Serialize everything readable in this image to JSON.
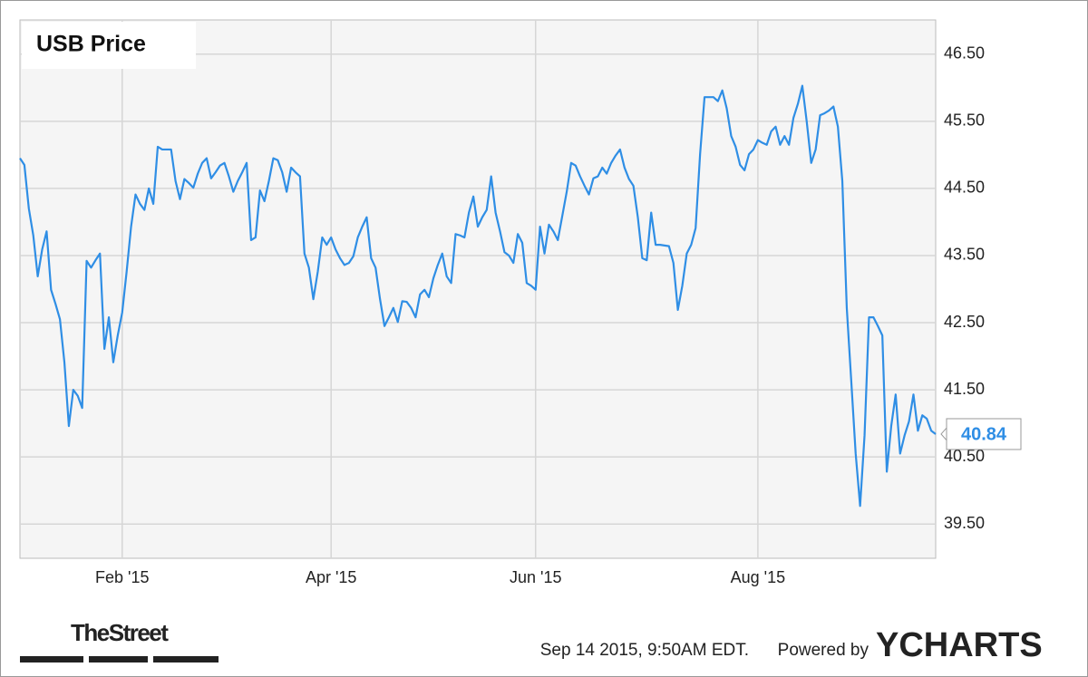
{
  "chart_data": {
    "type": "line",
    "title": "USB Price",
    "series": [
      {
        "name": "USB",
        "color": "#2f8ee5",
        "values": [
          44.95,
          44.85,
          44.2,
          43.8,
          43.19,
          43.59,
          43.86,
          42.99,
          42.78,
          42.55,
          41.91,
          40.96,
          41.5,
          41.41,
          41.23,
          43.42,
          43.32,
          43.43,
          43.53,
          42.11,
          42.58,
          41.91,
          42.31,
          42.65,
          43.26,
          43.93,
          44.41,
          44.27,
          44.18,
          44.5,
          44.27,
          45.12,
          45.08,
          45.08,
          45.08,
          44.61,
          44.34,
          44.64,
          44.58,
          44.51,
          44.72,
          44.88,
          44.95,
          44.65,
          44.74,
          44.84,
          44.88,
          44.68,
          44.45,
          44.61,
          44.74,
          44.88,
          43.73,
          43.77,
          44.47,
          44.31,
          44.61,
          44.95,
          44.92,
          44.74,
          44.45,
          44.81,
          44.74,
          44.68,
          43.53,
          43.32,
          42.85,
          43.26,
          43.77,
          43.66,
          43.77,
          43.59,
          43.46,
          43.36,
          43.39,
          43.49,
          43.77,
          43.93,
          44.07,
          43.46,
          43.32,
          42.85,
          42.45,
          42.58,
          42.72,
          42.51,
          42.82,
          42.81,
          42.72,
          42.58,
          42.92,
          42.99,
          42.88,
          43.16,
          43.36,
          43.53,
          43.19,
          43.09,
          43.82,
          43.8,
          43.77,
          44.14,
          44.38,
          43.93,
          44.07,
          44.18,
          44.68,
          44.14,
          43.86,
          43.55,
          43.5,
          43.39,
          43.82,
          43.69,
          43.09,
          43.05,
          42.99,
          43.93,
          43.53,
          43.96,
          43.86,
          43.73,
          44.09,
          44.45,
          44.88,
          44.84,
          44.68,
          44.54,
          44.41,
          44.65,
          44.68,
          44.81,
          44.72,
          44.88,
          44.99,
          45.08,
          44.81,
          44.64,
          44.54,
          44.07,
          43.46,
          43.43,
          44.14,
          43.66,
          43.66,
          43.65,
          43.64,
          43.39,
          42.69,
          43.05,
          43.53,
          43.66,
          43.91,
          45.01,
          45.86,
          45.86,
          45.86,
          45.8,
          45.96,
          45.69,
          45.28,
          45.12,
          44.85,
          44.77,
          45.01,
          45.08,
          45.22,
          45.18,
          45.15,
          45.35,
          45.42,
          45.15,
          45.28,
          45.15,
          45.55,
          45.76,
          46.03,
          45.49,
          44.88,
          45.08,
          45.59,
          45.62,
          45.66,
          45.72,
          45.42,
          44.61,
          42.72,
          41.64,
          40.55,
          39.77,
          40.82,
          42.58,
          42.58,
          42.45,
          42.31,
          40.28,
          40.96,
          41.43,
          40.55,
          40.82,
          41.03,
          41.43,
          40.89,
          41.12,
          41.07,
          40.89,
          40.84
        ]
      }
    ],
    "ylim": [
      38.99,
      47.01
    ],
    "yticks": [
      {
        "value": 39.5,
        "label": "39.50"
      },
      {
        "value": 40.5,
        "label": "40.50"
      },
      {
        "value": 41.5,
        "label": "41.50"
      },
      {
        "value": 42.5,
        "label": "42.50"
      },
      {
        "value": 43.5,
        "label": "43.50"
      },
      {
        "value": 44.5,
        "label": "44.50"
      },
      {
        "value": 45.5,
        "label": "45.50"
      },
      {
        "value": 46.5,
        "label": "46.50"
      }
    ],
    "xticks": [
      {
        "value": 23,
        "label": "Feb '15"
      },
      {
        "value": 70,
        "label": "Apr '15"
      },
      {
        "value": 116,
        "label": "Jun '15"
      },
      {
        "value": 166,
        "label": "Aug '15"
      }
    ],
    "grid": true
  },
  "logo": "TheStreet",
  "footer": {
    "timestamp": "Sep 14 2015, 9:50AM EDT.",
    "powered_by": "Powered by",
    "brand": "YCHARTS"
  }
}
